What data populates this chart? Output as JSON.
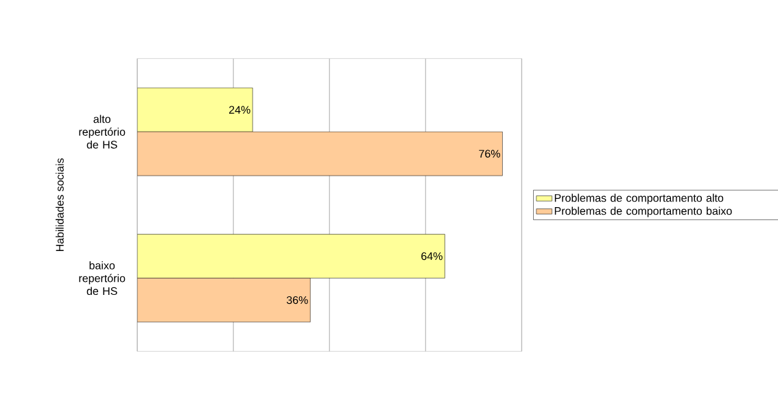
{
  "chart_data": {
    "type": "bar",
    "orientation": "horizontal",
    "ylabel": "Habilidades sociais",
    "categories": [
      "alto repertório de HS",
      "baixo repertório de HS"
    ],
    "series": [
      {
        "name": "Problemas de comportamento alto",
        "color": "#ffff99",
        "values": [
          24,
          64
        ],
        "value_labels": [
          "24%",
          "64%"
        ]
      },
      {
        "name": "Problemas de comportamento baixo",
        "color": "#ffcc99",
        "values": [
          76,
          36
        ],
        "value_labels": [
          "76%",
          "36%"
        ]
      }
    ],
    "xlim": [
      0,
      80
    ],
    "xticks": [
      {
        "value": 0,
        "label": null
      },
      {
        "value": 20,
        "label": null
      },
      {
        "value": 40,
        "label": null
      },
      {
        "value": 60,
        "label": null
      },
      {
        "value": 80,
        "label": null
      }
    ],
    "tick_labels": "y",
    "grid": "x",
    "legend": "right"
  }
}
